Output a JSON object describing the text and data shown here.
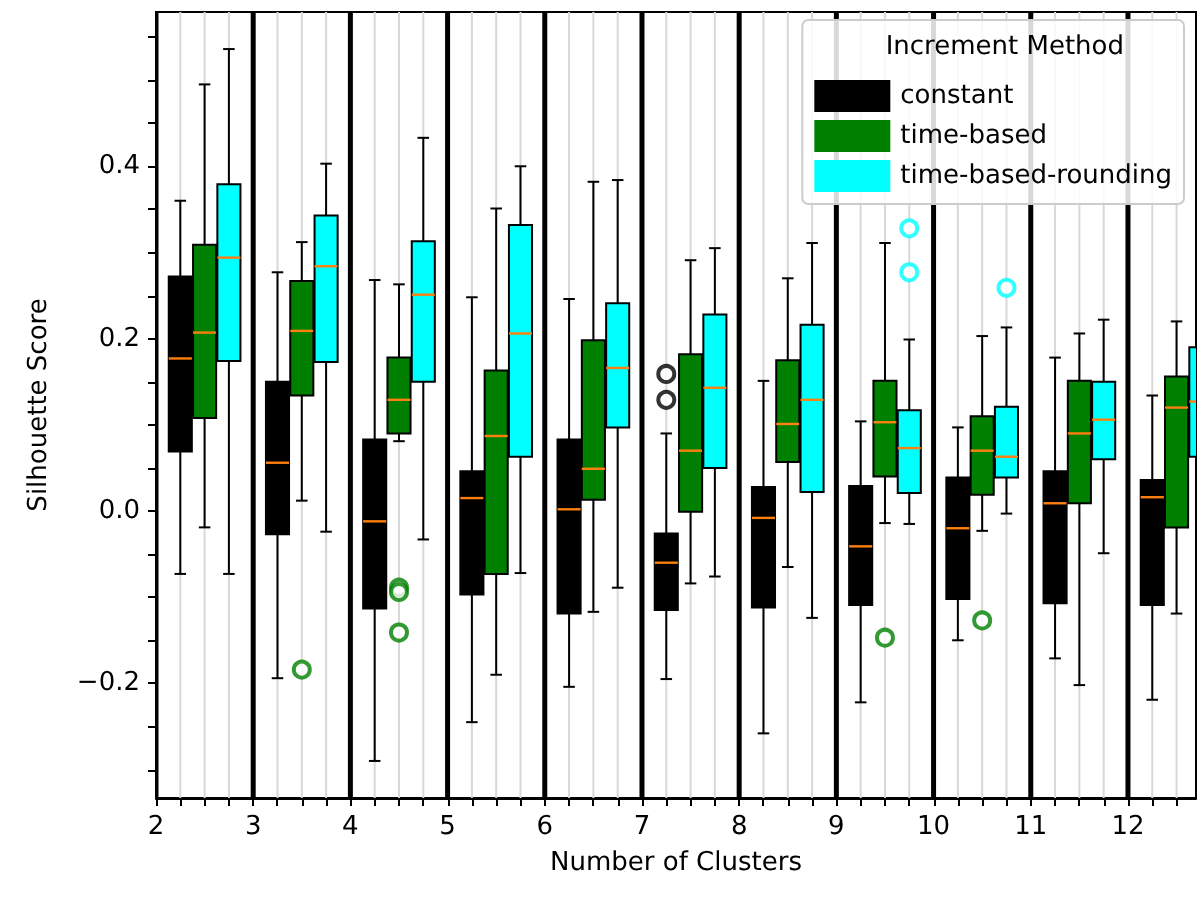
{
  "chart_data": {
    "type": "box",
    "xlabel": "Number of Clusters",
    "ylabel": "Silhouette Score",
    "legend_title": "Increment Method",
    "legend": "top right",
    "grid": "x",
    "x": [
      2,
      3,
      4,
      5,
      6,
      7,
      8,
      9,
      10,
      11,
      12
    ],
    "xlim": [
      2,
      12.7
    ],
    "xticks": [
      2,
      {
        "value": 2.25,
        "label": null
      },
      {
        "value": 2.5,
        "label": null
      },
      {
        "value": 2.75,
        "label": null
      },
      3,
      {
        "value": 3.25,
        "label": null
      },
      {
        "value": 3.5,
        "label": null
      },
      {
        "value": 3.75,
        "label": null
      },
      4,
      {
        "value": 4.25,
        "label": null
      },
      {
        "value": 4.5,
        "label": null
      },
      {
        "value": 4.75,
        "label": null
      },
      5,
      {
        "value": 5.25,
        "label": null
      },
      {
        "value": 5.5,
        "label": null
      },
      {
        "value": 5.75,
        "label": null
      },
      6,
      {
        "value": 6.25,
        "label": null
      },
      {
        "value": 6.5,
        "label": null
      },
      {
        "value": 6.75,
        "label": null
      },
      7,
      {
        "value": 7.25,
        "label": null
      },
      {
        "value": 7.5,
        "label": null
      },
      {
        "value": 7.75,
        "label": null
      },
      8,
      {
        "value": 8.25,
        "label": null
      },
      {
        "value": 8.5,
        "label": null
      },
      {
        "value": 8.75,
        "label": null
      },
      9,
      {
        "value": 9.25,
        "label": null
      },
      {
        "value": 9.5,
        "label": null
      },
      {
        "value": 9.75,
        "label": null
      },
      10,
      {
        "value": 10.25,
        "label": null
      },
      {
        "value": 10.5,
        "label": null
      },
      {
        "value": 10.75,
        "label": null
      },
      11,
      {
        "value": 11.25,
        "label": null
      },
      {
        "value": 11.5,
        "label": null
      },
      {
        "value": 11.75,
        "label": null
      },
      12,
      {
        "value": 12.25,
        "label": null
      },
      {
        "value": 12.5,
        "label": null
      }
    ],
    "ylim": [
      -0.333,
      0.579
    ],
    "yticks": [
      {
        "value": -0.3,
        "label": null
      },
      {
        "value": -0.25,
        "label": null
      },
      {
        "value": -0.2,
        "label": "−0.2"
      },
      {
        "value": -0.15,
        "label": null
      },
      {
        "value": -0.1,
        "label": null
      },
      {
        "value": -0.05,
        "label": null
      },
      {
        "value": 0,
        "label": "0.0"
      },
      {
        "value": 0.05,
        "label": null
      },
      {
        "value": 0.1,
        "label": null
      },
      {
        "value": 0.15,
        "label": null
      },
      {
        "value": 0.2,
        "label": "0.2"
      },
      {
        "value": 0.25,
        "label": null
      },
      {
        "value": 0.3,
        "label": null
      },
      {
        "value": 0.35,
        "label": null
      },
      {
        "value": 0.4,
        "label": "0.4"
      },
      {
        "value": 0.45,
        "label": null
      },
      {
        "value": 0.5,
        "label": null
      },
      {
        "value": 0.55,
        "label": null
      }
    ],
    "series": [
      {
        "name": "constant",
        "color": "#000000",
        "boxes": [
          {
            "low": -0.073,
            "q1": 0.069,
            "median": 0.177,
            "q3": 0.272,
            "high": 0.36
          },
          {
            "low": -0.194,
            "q1": -0.027,
            "median": 0.056,
            "q3": 0.15,
            "high": 0.277
          },
          {
            "low": -0.29,
            "q1": -0.113,
            "median": -0.012,
            "q3": 0.083,
            "high": 0.268
          },
          {
            "low": -0.245,
            "q1": -0.097,
            "median": 0.015,
            "q3": 0.046,
            "high": 0.248
          },
          {
            "low": -0.204,
            "q1": -0.119,
            "median": 0.002,
            "q3": 0.083,
            "high": 0.246
          },
          {
            "low": -0.195,
            "q1": -0.115,
            "median": -0.06,
            "q3": -0.026,
            "high": 0.09,
            "outliers": [
              0.159,
              0.129
            ]
          },
          {
            "low": -0.258,
            "q1": -0.112,
            "median": -0.008,
            "q3": 0.028,
            "high": 0.151
          },
          {
            "low": -0.222,
            "q1": -0.109,
            "median": -0.041,
            "q3": 0.029,
            "high": 0.104
          },
          {
            "low": -0.15,
            "q1": -0.102,
            "median": -0.02,
            "q3": 0.039,
            "high": 0.097
          },
          {
            "low": -0.171,
            "q1": -0.107,
            "median": 0.009,
            "q3": 0.046,
            "high": 0.178
          },
          {
            "low": -0.219,
            "q1": -0.109,
            "median": 0.016,
            "q3": 0.036,
            "high": 0.134
          }
        ]
      },
      {
        "name": "time-based",
        "color": "#008000",
        "boxes": [
          {
            "low": -0.019,
            "q1": 0.108,
            "median": 0.207,
            "q3": 0.309,
            "high": 0.495
          },
          {
            "low": 0.012,
            "q1": 0.134,
            "median": 0.209,
            "q3": 0.267,
            "high": 0.312,
            "outliers": [
              -0.184
            ]
          },
          {
            "low": 0.081,
            "q1": 0.09,
            "median": 0.129,
            "q3": 0.178,
            "high": 0.263,
            "outliers": [
              -0.089,
              -0.094,
              -0.141
            ]
          },
          {
            "low": -0.19,
            "q1": -0.073,
            "median": 0.087,
            "q3": 0.163,
            "high": 0.351
          },
          {
            "low": -0.117,
            "q1": 0.013,
            "median": 0.049,
            "q3": 0.198,
            "high": 0.382
          },
          {
            "low": -0.084,
            "q1": -0.001,
            "median": 0.07,
            "q3": 0.182,
            "high": 0.291
          },
          {
            "low": -0.065,
            "q1": 0.057,
            "median": 0.101,
            "q3": 0.175,
            "high": 0.27
          },
          {
            "low": -0.014,
            "q1": 0.04,
            "median": 0.103,
            "q3": 0.151,
            "high": 0.311,
            "outliers": [
              -0.147
            ]
          },
          {
            "low": -0.023,
            "q1": 0.019,
            "median": 0.07,
            "q3": 0.11,
            "high": 0.203,
            "outliers": [
              -0.127
            ]
          },
          {
            "low": -0.202,
            "q1": 0.009,
            "median": 0.09,
            "q3": 0.151,
            "high": 0.206
          },
          {
            "low": -0.119,
            "q1": -0.019,
            "median": 0.12,
            "q3": 0.156,
            "high": 0.22
          }
        ]
      },
      {
        "name": "time-based-rounding",
        "color": "#00ffff",
        "boxes": [
          {
            "low": -0.073,
            "q1": 0.174,
            "median": 0.294,
            "q3": 0.379,
            "high": 0.536
          },
          {
            "low": -0.024,
            "q1": 0.173,
            "median": 0.284,
            "q3": 0.343,
            "high": 0.403
          },
          {
            "low": -0.033,
            "q1": 0.15,
            "median": 0.251,
            "q3": 0.313,
            "high": 0.433
          },
          {
            "low": -0.072,
            "q1": 0.063,
            "median": 0.206,
            "q3": 0.332,
            "high": 0.4
          },
          {
            "low": -0.089,
            "q1": 0.097,
            "median": 0.166,
            "q3": 0.241,
            "high": 0.384
          },
          {
            "low": -0.076,
            "q1": 0.05,
            "median": 0.143,
            "q3": 0.228,
            "high": 0.305
          },
          {
            "low": -0.124,
            "q1": 0.022,
            "median": 0.129,
            "q3": 0.216,
            "high": 0.311
          },
          {
            "low": -0.015,
            "q1": 0.021,
            "median": 0.073,
            "q3": 0.117,
            "high": 0.199,
            "outliers": [
              0.328,
              0.277
            ]
          },
          {
            "low": -0.003,
            "q1": 0.039,
            "median": 0.063,
            "q3": 0.121,
            "high": 0.213,
            "outliers": [
              0.259
            ]
          },
          {
            "low": -0.049,
            "q1": 0.06,
            "median": 0.106,
            "q3": 0.15,
            "high": 0.222
          },
          {
            "low": -0.035,
            "q1": 0.063,
            "median": 0.127,
            "q3": 0.19,
            "high": 0.293
          }
        ]
      }
    ]
  }
}
